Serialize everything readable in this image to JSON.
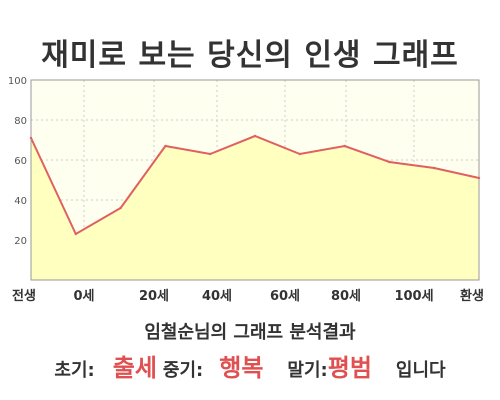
{
  "title": "재미로 보는 당신의 인생 그래프",
  "subtitle": "임철순님의 그래프 분석결과",
  "summary": {
    "early_label": "초기:",
    "early_value": "출세",
    "mid_label": "중기:",
    "mid_value": "행복",
    "late_label": "말기:",
    "late_value": "평범",
    "suffix": "입니다"
  },
  "colors": {
    "line": "#e06060",
    "fill": "#ffffc0",
    "accent": "#e05050",
    "grid": "#cccccc"
  },
  "chart_data": {
    "type": "area",
    "title": "재미로 보는 당신의 인생 그래프",
    "xlabel": "",
    "ylabel": "",
    "x_tick_labels": [
      "전생",
      "0세",
      "20세",
      "40세",
      "60세",
      "80세",
      "100세",
      "환생"
    ],
    "y_ticks": [
      20,
      40,
      60,
      80,
      100
    ],
    "ylim": [
      0,
      100
    ],
    "grid": true,
    "series": [
      {
        "values": [
          71,
          23,
          36,
          67,
          63,
          72,
          63,
          67,
          59,
          56,
          51
        ]
      }
    ]
  }
}
